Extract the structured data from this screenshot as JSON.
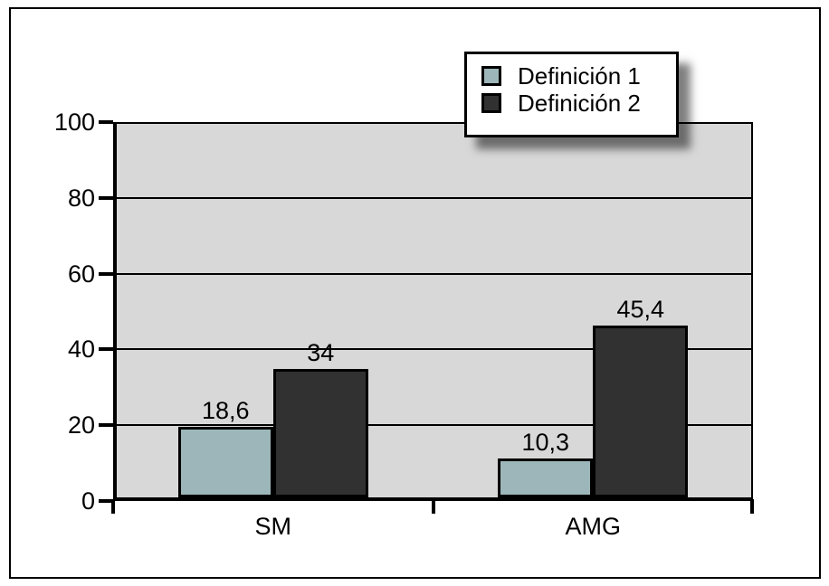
{
  "chart_data": {
    "type": "bar",
    "title": "",
    "xlabel": "",
    "ylabel": "",
    "categories": [
      "SM",
      "AMG"
    ],
    "series": [
      {
        "name": "Definición 1",
        "color": "#9cb6b9",
        "values": [
          18.6,
          10.3
        ],
        "value_labels": [
          "18,6",
          "10,3"
        ]
      },
      {
        "name": "Definición 2",
        "color": "#313131",
        "values": [
          34,
          45.4
        ],
        "value_labels": [
          "34",
          "45,4"
        ]
      }
    ],
    "ylim": [
      0,
      100
    ],
    "yticks": [
      "0",
      "20",
      "40",
      "60",
      "80",
      "100"
    ],
    "grid": true,
    "gridline_color": "#000000",
    "plot_background": "#d8d8d8",
    "legend_position": "top-center-above-plot",
    "legend_entries": [
      "Definición 1",
      "Definición 2"
    ]
  },
  "colors": {
    "series_1": "#9cb6b9",
    "series_2": "#313131",
    "plot_background": "#d8d8d8",
    "frame_border": "#000000",
    "page_background": "#ffffff",
    "text": "#000000"
  }
}
